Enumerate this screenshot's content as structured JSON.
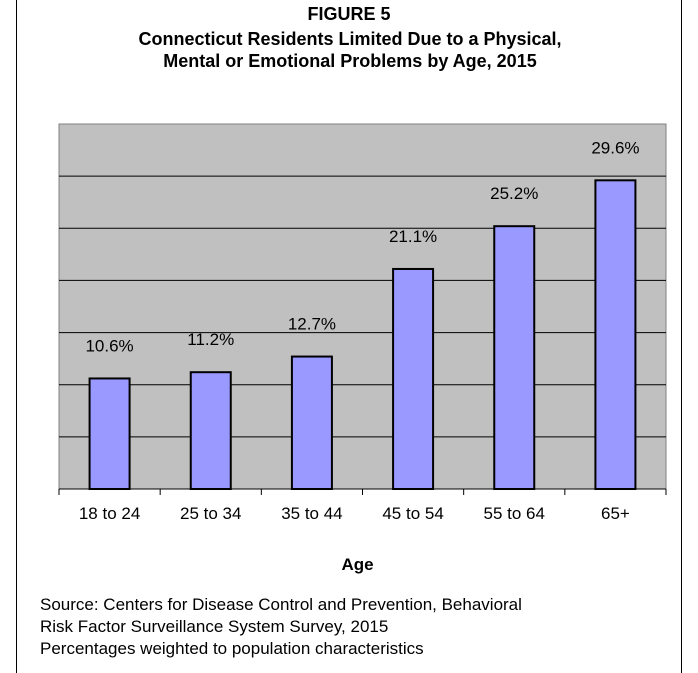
{
  "figure_label": "FIGURE 5",
  "title": "Connecticut Residents Limited Due to a Physical,\nMental or Emotional Problems by Age, 2015",
  "source_lines": [
    "Source: Centers for Disease Control and Prevention, Behavioral",
    "Risk Factor Surveillance System Survey, 2015",
    "Percentages weighted to population characteristics"
  ],
  "colors": {
    "bar_fill": "#9999ff",
    "bar_stroke": "#000000",
    "plot_background": "#c0c0c0",
    "gridline": "#000000"
  },
  "chart_data": {
    "type": "bar",
    "categories": [
      "18 to 24",
      "25 to 34",
      "35 to 44",
      "45 to 54",
      "55 to 64",
      "65+"
    ],
    "values": [
      10.6,
      11.2,
      12.7,
      21.1,
      25.2,
      29.6
    ],
    "value_labels": [
      "10.6%",
      "11.2%",
      "12.7%",
      "21.1%",
      "25.2%",
      "29.6%"
    ],
    "xlabel": "Age",
    "ylabel": "",
    "ylim": [
      0,
      35
    ],
    "grid": true,
    "legend": "none"
  }
}
